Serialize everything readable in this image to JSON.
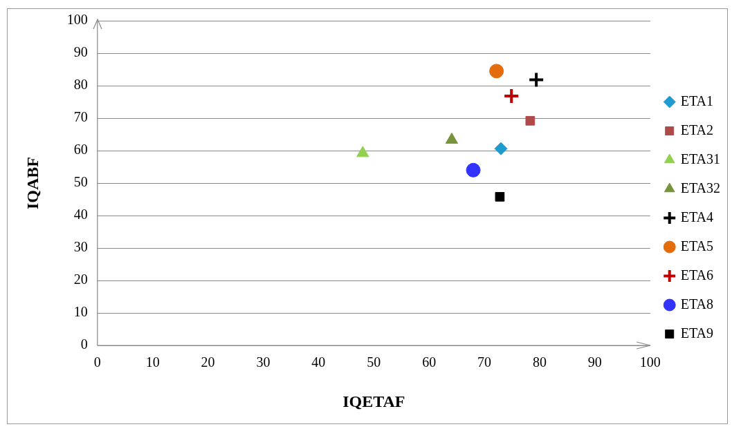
{
  "chart_data": {
    "type": "scatter",
    "xlabel": "IQETAF",
    "ylabel": "IQABF",
    "xlim": [
      0,
      100
    ],
    "xticks": [
      0,
      10,
      20,
      30,
      40,
      50,
      60,
      70,
      80,
      90,
      100
    ],
    "ylim": [
      0,
      100
    ],
    "yticks": [
      0,
      10,
      20,
      30,
      40,
      50,
      60,
      70,
      80,
      90,
      100
    ],
    "grid": "y",
    "legend": "right",
    "series": [
      {
        "name": "ETA1",
        "color": "#1f9bcf",
        "marker": "diamond",
        "x": [
          73.0
        ],
        "values": [
          60.6
        ]
      },
      {
        "name": "ETA2",
        "color": "#b04a4a",
        "marker": "square",
        "x": [
          78.3
        ],
        "values": [
          69.2
        ]
      },
      {
        "name": "ETA31",
        "color": "#92d050",
        "marker": "triangle",
        "x": [
          48.0
        ],
        "values": [
          59.2
        ]
      },
      {
        "name": "ETA32",
        "color": "#77933c",
        "marker": "triangle",
        "x": [
          64.1
        ],
        "values": [
          63.3
        ]
      },
      {
        "name": "ETA4",
        "color": "#000000",
        "marker": "cross",
        "x": [
          79.4
        ],
        "values": [
          81.8
        ]
      },
      {
        "name": "ETA5",
        "color": "#e46c0a",
        "marker": "circle",
        "x": [
          72.2
        ],
        "values": [
          84.5
        ]
      },
      {
        "name": "ETA6",
        "color": "#c00000",
        "marker": "cross",
        "x": [
          74.9
        ],
        "values": [
          76.8
        ]
      },
      {
        "name": "ETA8",
        "color": "#3333ff",
        "marker": "circle",
        "x": [
          68.0
        ],
        "values": [
          54.0
        ]
      },
      {
        "name": "ETA9",
        "color": "#000000",
        "marker": "square",
        "x": [
          72.8
        ],
        "values": [
          45.8
        ]
      }
    ]
  }
}
